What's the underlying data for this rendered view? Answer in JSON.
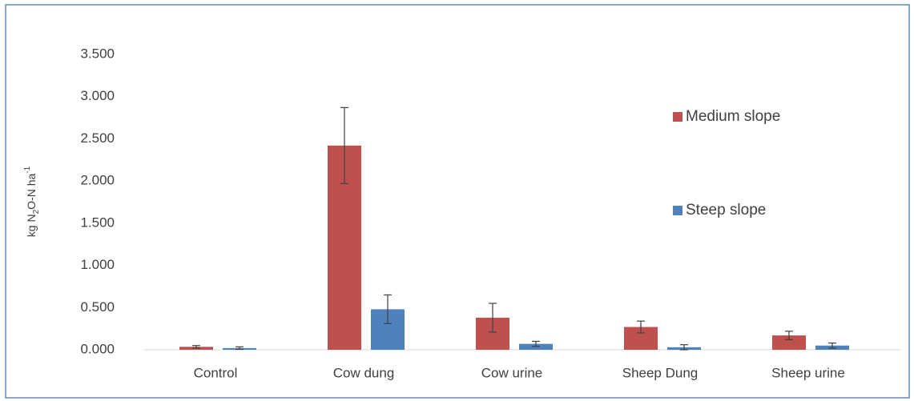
{
  "chart_data": {
    "type": "bar",
    "y_label_parts": [
      {
        "text": "kg N"
      },
      {
        "text": "2",
        "shift": "sub"
      },
      {
        "text": "O-N ha"
      },
      {
        "text": "-1",
        "shift": "super"
      }
    ],
    "categories": [
      "Control",
      "Cow dung",
      "Cow urine",
      "Sheep Dung",
      "Sheep urine"
    ],
    "series": [
      {
        "name": "Medium slope",
        "color": "#c0504d",
        "values": [
          0.035,
          2.42,
          0.38,
          0.27,
          0.17
        ],
        "errors": [
          0.015,
          0.45,
          0.17,
          0.07,
          0.05
        ]
      },
      {
        "name": "Steep slope",
        "color": "#4f81bd",
        "values": [
          0.02,
          0.48,
          0.07,
          0.03,
          0.05
        ],
        "errors": [
          0.015,
          0.17,
          0.03,
          0.03,
          0.03
        ]
      }
    ],
    "ylim": [
      0,
      3.5
    ],
    "yticks": [
      {
        "value": 0,
        "label": "0.000"
      },
      {
        "value": 0.5,
        "label": "0.500"
      },
      {
        "value": 1,
        "label": "1.000"
      },
      {
        "value": 1.5,
        "label": "1.500"
      },
      {
        "value": 2,
        "label": "2.000"
      },
      {
        "value": 2.5,
        "label": "2.500"
      },
      {
        "value": 3,
        "label": "3.000"
      },
      {
        "value": 3.5,
        "label": "3.500"
      }
    ],
    "grid": false,
    "legend": "right"
  }
}
